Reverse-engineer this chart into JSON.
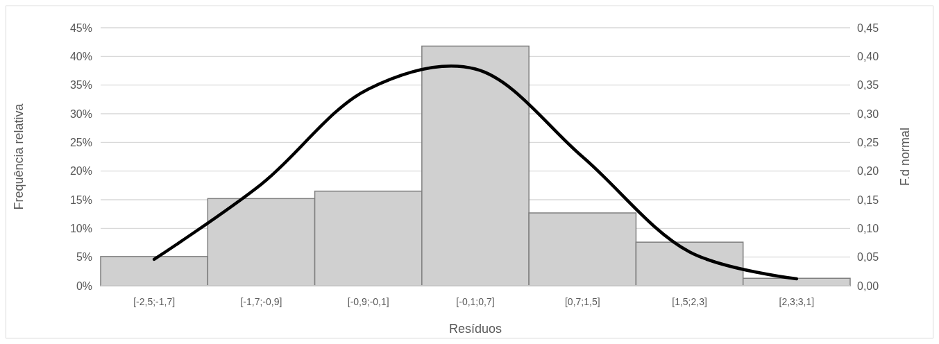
{
  "chart_data": {
    "type": "bar",
    "xlabel": "Resíduos",
    "ylabel": "Frequência relativa",
    "y2label": "F.d normal",
    "categories": [
      "[-2,5;-1,7]",
      "[-1,7;-0,9]",
      "[-0,9;-0,1]",
      "[-0,1;0,7]",
      "[0,7;1,5]",
      "[1,5;2,3]",
      "[2,3;3,1]"
    ],
    "series": [
      {
        "color": "#d0d0d0",
        "values": [
          5.1,
          15.2,
          16.5,
          41.8,
          12.7,
          7.6,
          1.3
        ]
      },
      {
        "type": "line",
        "axis": "y2",
        "color": "#000000",
        "values": [
          0.046,
          0.177,
          0.343,
          0.378,
          0.225,
          0.059,
          0.012
        ]
      }
    ],
    "ylim": [
      0,
      45
    ],
    "yticks": [
      {
        "value": 0,
        "label": "0%"
      },
      {
        "value": 5,
        "label": "5%"
      },
      {
        "value": 10,
        "label": "10%"
      },
      {
        "value": 15,
        "label": "15%"
      },
      {
        "value": 20,
        "label": "20%"
      },
      {
        "value": 25,
        "label": "25%"
      },
      {
        "value": 30,
        "label": "30%"
      },
      {
        "value": 35,
        "label": "35%"
      },
      {
        "value": 40,
        "label": "40%"
      },
      {
        "value": 45,
        "label": "45%"
      }
    ],
    "y2lim": [
      0,
      0.45
    ],
    "y2ticks": [
      {
        "value": 0,
        "label": "0,00"
      },
      {
        "value": 0.05,
        "label": "0,05"
      },
      {
        "value": 0.1,
        "label": "0,10"
      },
      {
        "value": 0.15,
        "label": "0,15"
      },
      {
        "value": 0.2,
        "label": "0,20"
      },
      {
        "value": 0.25,
        "label": "0,25"
      },
      {
        "value": 0.3,
        "label": "0,30"
      },
      {
        "value": 0.35,
        "label": "0,35"
      },
      {
        "value": 0.4,
        "label": "0,40"
      },
      {
        "value": 0.45,
        "label": "0,45"
      }
    ],
    "grid": "y",
    "marker": "none",
    "line_style": "solid"
  }
}
